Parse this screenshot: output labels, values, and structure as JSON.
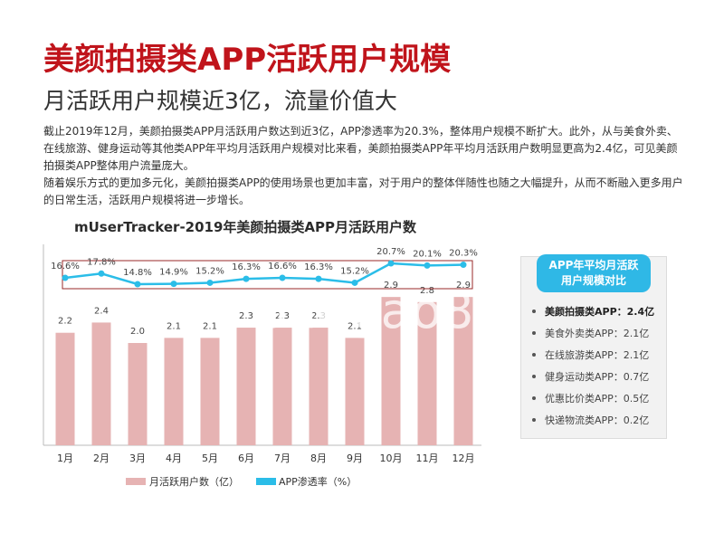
{
  "page": {
    "title": "美颜拍摄类APP活跃用户规模",
    "subtitle": "月活跃用户规模近3亿，流量价值大",
    "paragraph": "截止2019年12月，美颜拍摄类APP月活跃用户数达到近3亿，APP渗透率为20.3%，整体用户规模不断扩大。此外，从与美食外卖、在线旅游、健身运动等其他类APP年平均月活跃用户规模对比来看，美颜拍摄类APP年平均月活跃用户数明显更高为2.4亿，可见美颜拍摄类APP整体用户流量庞大。",
    "paragraph2": "随着娱乐方式的更加多元化，美颜拍摄类APP的使用场景也更加丰富，对于用户的整体伴随性也随之大幅提升，从而不断融入更多用户的日常生活，活跃用户规模将进一步增长。",
    "watermark": "baogao8.com"
  },
  "chart_data": {
    "type": "bar",
    "title": "mUserTracker-2019年美颜拍摄类APP月活跃用户数",
    "categories": [
      "1月",
      "2月",
      "3月",
      "4月",
      "5月",
      "6月",
      "7月",
      "8月",
      "9月",
      "10月",
      "11月",
      "12月"
    ],
    "series": [
      {
        "name": "月活跃用户数（亿）",
        "type": "bar",
        "color": "#e6b3b3",
        "values": [
          2.2,
          2.4,
          2.0,
          2.1,
          2.1,
          2.3,
          2.3,
          2.3,
          2.1,
          2.9,
          2.8,
          2.9
        ],
        "labels": [
          "2.2",
          "2.4",
          "2.0",
          "2.1",
          "2.1",
          "2.3",
          "2.3",
          "2.3",
          "2.1",
          "2.9",
          "2.8",
          "2.9"
        ]
      },
      {
        "name": "APP渗透率（%）",
        "type": "line",
        "color": "#2bbde8",
        "values": [
          16.6,
          17.8,
          14.8,
          14.9,
          15.2,
          16.3,
          16.6,
          16.3,
          15.2,
          20.7,
          20.1,
          20.3
        ],
        "labels": [
          "16.6%",
          "17.8%",
          "14.8%",
          "14.9%",
          "15.2%",
          "16.3%",
          "16.6%",
          "16.3%",
          "15.2%",
          "20.7%",
          "20.1%",
          "20.3%"
        ]
      }
    ],
    "legend_position": "bottom",
    "grid": false
  },
  "side_panel": {
    "header_line1": "APP年平均月活跃",
    "header_line2": "用户规模对比",
    "items": [
      {
        "label": "美颜拍摄类APP：2.4亿",
        "highlight": true
      },
      {
        "label": "美食外卖类APP：2.1亿",
        "highlight": false
      },
      {
        "label": "在线旅游类APP：2.1亿",
        "highlight": false
      },
      {
        "label": "健身运动类APP：0.7亿",
        "highlight": false
      },
      {
        "label": "优惠比价类APP：0.5亿",
        "highlight": false
      },
      {
        "label": "快递物流类APP：0.2亿",
        "highlight": false
      }
    ]
  }
}
